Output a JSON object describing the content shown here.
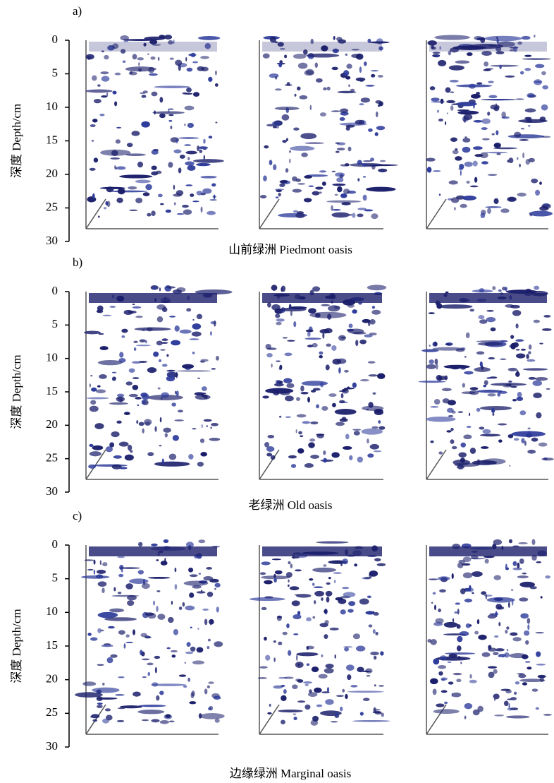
{
  "panels": [
    {
      "label": "a)",
      "y_axis_label": "深度 Depth/cm",
      "yticks": [
        0,
        5,
        10,
        15,
        20,
        25,
        30
      ],
      "caption": "山前绿洲 Piedmont oasis"
    },
    {
      "label": "b)",
      "y_axis_label": "深度 Depth/cm",
      "yticks": [
        0,
        5,
        10,
        15,
        20,
        25,
        30
      ],
      "caption": "老绿洲 Old oasis"
    },
    {
      "label": "c)",
      "y_axis_label": "深度 Depth/cm",
      "yticks": [
        0,
        5,
        10,
        15,
        20,
        25,
        30
      ],
      "caption": "边缘绿洲 Marginal oasis"
    }
  ]
}
